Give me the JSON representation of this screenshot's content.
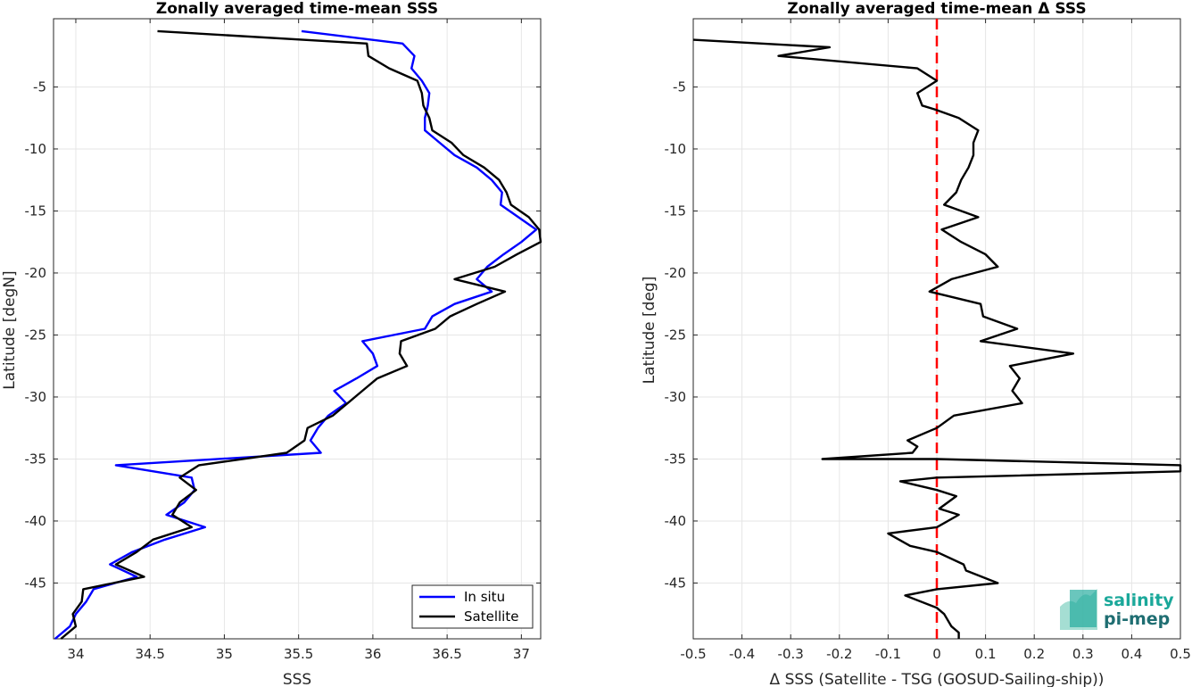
{
  "chart_data": [
    {
      "type": "line",
      "title": "Zonally averaged time-mean SSS",
      "xlabel": "SSS",
      "ylabel": "Latitude [degN]",
      "xlim": [
        33.85,
        37.13
      ],
      "ylim": [
        -49.5,
        0.5
      ],
      "xticks": [
        34,
        34.5,
        35,
        35.5,
        36,
        36.5,
        37
      ],
      "xtick_labels": [
        "34",
        "34.5",
        "35",
        "35.5",
        "36",
        "36.5",
        "37"
      ],
      "yticks": [
        -5,
        -10,
        -15,
        -20,
        -25,
        -30,
        -35,
        -40,
        -45
      ],
      "ytick_labels": [
        "-5",
        "-10",
        "-15",
        "-20",
        "-25",
        "-30",
        "-35",
        "-40",
        "-45"
      ],
      "grid": true,
      "legend_position": "bottom-right",
      "series": [
        {
          "name": "In situ",
          "color": "#0000ff",
          "points": [
            [
              35.52,
              -0.5
            ],
            [
              36.2,
              -1.5
            ],
            [
              36.28,
              -2.5
            ],
            [
              36.26,
              -3.5
            ],
            [
              36.33,
              -4.5
            ],
            [
              36.38,
              -5.5
            ],
            [
              36.37,
              -6.5
            ],
            [
              36.35,
              -7.5
            ],
            [
              36.35,
              -8.5
            ],
            [
              36.45,
              -9.5
            ],
            [
              36.55,
              -10.5
            ],
            [
              36.7,
              -11.5
            ],
            [
              36.8,
              -12.5
            ],
            [
              36.87,
              -13.5
            ],
            [
              36.86,
              -14.5
            ],
            [
              36.98,
              -15.5
            ],
            [
              37.1,
              -16.5
            ],
            [
              37.0,
              -17.5
            ],
            [
              36.88,
              -18.5
            ],
            [
              36.77,
              -19.5
            ],
            [
              36.7,
              -20.5
            ],
            [
              36.8,
              -21.5
            ],
            [
              36.55,
              -22.5
            ],
            [
              36.4,
              -23.5
            ],
            [
              36.35,
              -24.5
            ],
            [
              35.93,
              -25.5
            ],
            [
              36.0,
              -26.5
            ],
            [
              36.03,
              -27.5
            ],
            [
              35.89,
              -28.5
            ],
            [
              35.74,
              -29.5
            ],
            [
              35.82,
              -30.5
            ],
            [
              35.7,
              -31.5
            ],
            [
              35.63,
              -32.5
            ],
            [
              35.58,
              -33.5
            ],
            [
              35.65,
              -34.5
            ],
            [
              34.27,
              -35.5
            ],
            [
              34.78,
              -36.5
            ],
            [
              34.8,
              -37.5
            ],
            [
              34.73,
              -38.5
            ],
            [
              34.61,
              -39.5
            ],
            [
              34.87,
              -40.5
            ],
            [
              34.6,
              -41.5
            ],
            [
              34.38,
              -42.5
            ],
            [
              34.23,
              -43.5
            ],
            [
              34.41,
              -44.5
            ],
            [
              34.12,
              -45.5
            ],
            [
              34.07,
              -46.5
            ],
            [
              34.0,
              -47.5
            ],
            [
              33.96,
              -48.5
            ],
            [
              33.86,
              -49.5
            ]
          ]
        },
        {
          "name": "Satellite",
          "color": "#000000",
          "points": [
            [
              34.55,
              -0.5
            ],
            [
              35.96,
              -1.5
            ],
            [
              35.97,
              -2.5
            ],
            [
              36.11,
              -3.5
            ],
            [
              36.3,
              -4.5
            ],
            [
              36.33,
              -5.5
            ],
            [
              36.34,
              -6.5
            ],
            [
              36.38,
              -7.5
            ],
            [
              36.4,
              -8.5
            ],
            [
              36.53,
              -9.5
            ],
            [
              36.61,
              -10.5
            ],
            [
              36.75,
              -11.5
            ],
            [
              36.85,
              -12.5
            ],
            [
              36.9,
              -13.5
            ],
            [
              36.93,
              -14.5
            ],
            [
              37.05,
              -15.5
            ],
            [
              37.12,
              -16.5
            ],
            [
              37.13,
              -17.5
            ],
            [
              36.97,
              -18.5
            ],
            [
              36.82,
              -19.5
            ],
            [
              36.55,
              -20.5
            ],
            [
              36.89,
              -21.5
            ],
            [
              36.7,
              -22.5
            ],
            [
              36.52,
              -23.5
            ],
            [
              36.42,
              -24.5
            ],
            [
              36.19,
              -25.5
            ],
            [
              36.18,
              -26.5
            ],
            [
              36.23,
              -27.5
            ],
            [
              36.03,
              -28.5
            ],
            [
              35.93,
              -29.5
            ],
            [
              35.83,
              -30.5
            ],
            [
              35.73,
              -31.5
            ],
            [
              35.56,
              -32.5
            ],
            [
              35.54,
              -33.5
            ],
            [
              35.42,
              -34.5
            ],
            [
              34.83,
              -35.5
            ],
            [
              34.7,
              -36.5
            ],
            [
              34.81,
              -37.5
            ],
            [
              34.7,
              -38.5
            ],
            [
              34.65,
              -39.5
            ],
            [
              34.78,
              -40.5
            ],
            [
              34.52,
              -41.5
            ],
            [
              34.41,
              -42.5
            ],
            [
              34.27,
              -43.5
            ],
            [
              34.46,
              -44.5
            ],
            [
              34.05,
              -45.5
            ],
            [
              34.04,
              -46.5
            ],
            [
              33.98,
              -47.5
            ],
            [
              34.0,
              -48.5
            ],
            [
              33.9,
              -49.5
            ]
          ]
        }
      ]
    },
    {
      "type": "line",
      "title": "Zonally averaged time-mean Δ SSS",
      "xlabel": "Δ SSS (Satellite - TSG (GOSUD-Sailing-ship))",
      "ylabel": "Latitude [deg]",
      "xlim": [
        -0.5,
        0.5
      ],
      "ylim": [
        -49.5,
        0.5
      ],
      "xticks": [
        -0.5,
        -0.4,
        -0.3,
        -0.2,
        -0.1,
        0,
        0.1,
        0.2,
        0.3,
        0.4,
        0.5
      ],
      "xtick_labels": [
        "-0.5",
        "-0.4",
        "-0.3",
        "-0.2",
        "-0.1",
        "0",
        "0.1",
        "0.2",
        "0.3",
        "0.4",
        "0.5"
      ],
      "yticks": [
        -5,
        -10,
        -15,
        -20,
        -25,
        -30,
        -35,
        -40,
        -45
      ],
      "ytick_labels": [
        "-5",
        "-10",
        "-15",
        "-20",
        "-25",
        "-30",
        "-35",
        "-40",
        "-45"
      ],
      "grid": true,
      "reference_line": {
        "x": 0,
        "color": "#ff0000",
        "style": "dashed"
      },
      "series": [
        {
          "color": "#000000",
          "points": [
            [
              -0.5,
              -1.2
            ],
            [
              -0.22,
              -1.8
            ],
            [
              -0.325,
              -2.5
            ],
            [
              -0.04,
              -3.5
            ],
            [
              0.0,
              -4.5
            ],
            [
              -0.04,
              -5.5
            ],
            [
              -0.03,
              -6.5
            ],
            [
              -0.005,
              -6.8
            ],
            [
              0.045,
              -7.5
            ],
            [
              0.085,
              -8.5
            ],
            [
              0.075,
              -9.5
            ],
            [
              0.075,
              -10.5
            ],
            [
              0.065,
              -11.5
            ],
            [
              0.05,
              -12.5
            ],
            [
              0.04,
              -13.5
            ],
            [
              0.015,
              -14.5
            ],
            [
              0.085,
              -15.5
            ],
            [
              0.01,
              -16.5
            ],
            [
              0.05,
              -17.5
            ],
            [
              0.1,
              -18.5
            ],
            [
              0.125,
              -19.5
            ],
            [
              0.03,
              -20.5
            ],
            [
              -0.015,
              -21.5
            ],
            [
              0.09,
              -22.5
            ],
            [
              0.095,
              -23.5
            ],
            [
              0.165,
              -24.5
            ],
            [
              0.09,
              -25.5
            ],
            [
              0.28,
              -26.5
            ],
            [
              0.15,
              -27.5
            ],
            [
              0.17,
              -28.5
            ],
            [
              0.155,
              -29.5
            ],
            [
              0.175,
              -30.5
            ],
            [
              0.035,
              -31.5
            ],
            [
              0.0,
              -32.5
            ],
            [
              -0.06,
              -33.5
            ],
            [
              -0.04,
              -34.0
            ],
            [
              -0.05,
              -34.5
            ],
            [
              -0.235,
              -35.0
            ],
            [
              0.0,
              -35.0
            ],
            [
              0.5,
              -35.5
            ],
            [
              0.5,
              -36.0
            ],
            [
              0.0,
              -36.5
            ],
            [
              -0.075,
              -36.8
            ],
            [
              0.0,
              -37.5
            ],
            [
              0.04,
              -38.0
            ],
            [
              0.005,
              -39.0
            ],
            [
              0.045,
              -39.5
            ],
            [
              0.0,
              -40.5
            ],
            [
              -0.1,
              -41.0
            ],
            [
              -0.055,
              -42.0
            ],
            [
              0.0,
              -42.5
            ],
            [
              0.055,
              -43.5
            ],
            [
              0.06,
              -44.0
            ],
            [
              0.125,
              -45.0
            ],
            [
              0.0,
              -45.5
            ],
            [
              -0.065,
              -46.0
            ],
            [
              0.0,
              -47.0
            ],
            [
              0.015,
              -47.5
            ],
            [
              0.03,
              -48.5
            ],
            [
              0.045,
              -49.0
            ],
            [
              0.045,
              -49.5
            ]
          ]
        }
      ]
    }
  ],
  "logo": {
    "line1": "salinity",
    "line2": "pi-mep",
    "color_primary": "#1aa89a",
    "color_secondary": "#1f6e72"
  }
}
